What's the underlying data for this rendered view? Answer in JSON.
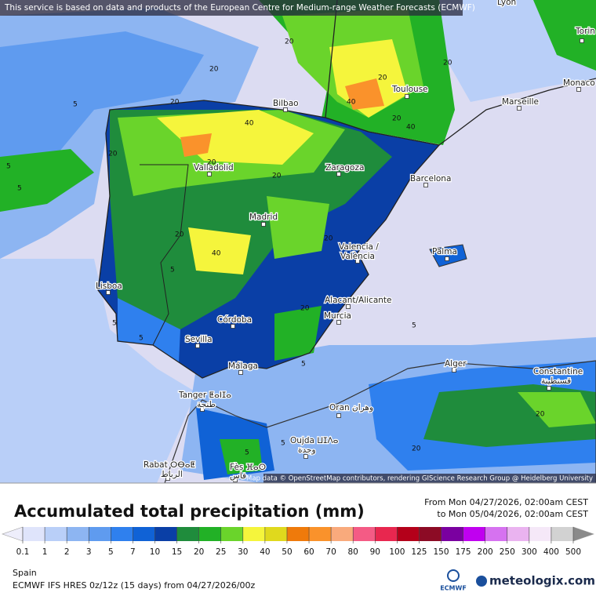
{
  "attribution_top": "This service is based on data and products of the European Centre for Medium-range Weather Forecasts (ECMWF)",
  "map_attribution": "Map data © OpenStreetMap contributors, rendering GIScience Research Group @ Heidelberg University",
  "cities": [
    "Lyon",
    "Torin",
    "Monaco",
    "Toulouse",
    "Marseille",
    "Bilbao",
    "Valladolid",
    "Zaragoza",
    "Barcelona",
    "Madrid",
    "Valencia /",
    "València",
    "Palma",
    "Lisboa",
    "Alacant/Alicante",
    "Murcia",
    "Córdoba",
    "Sevilla",
    "Málaga",
    "Alger",
    "Constantine",
    "قسنطينة",
    "Tanger ⵟⴰⵏⵊⴰ",
    "طنجة",
    "Oran وهران",
    "Oujda ⵡⵊⴷⴰ",
    "وجدة",
    "Rabat ⵔⴱⴰⵟ",
    "الرباط",
    "Fès ⴼⴰⵙ",
    "فاس"
  ],
  "contour_labels": [
    20,
    20,
    5,
    5,
    20,
    40,
    20,
    40,
    20,
    20,
    20,
    40,
    20,
    20,
    40,
    20,
    20,
    5,
    5,
    5,
    20,
    5,
    5,
    20,
    5,
    20,
    5,
    5
  ],
  "legend": {
    "title": "Accumulated total precipitation (mm)",
    "period_from": "From Mon 04/27/2026, 02:00am CEST",
    "period_to": "to Mon 05/04/2026, 02:00am CEST",
    "ticks": [
      0.1,
      1,
      2,
      3,
      5,
      7,
      10,
      15,
      20,
      25,
      30,
      40,
      50,
      60,
      70,
      80,
      90,
      100,
      125,
      150,
      175,
      200,
      250,
      300,
      400,
      500
    ],
    "colors": [
      "#dfe4fb",
      "#b9cff8",
      "#8db5f2",
      "#5f9bef",
      "#2f80ee",
      "#1062d6",
      "#0a3fa6",
      "#1f8c3c",
      "#22b126",
      "#6ad42b",
      "#f5f53c",
      "#e0d91d",
      "#ef7a0b",
      "#fa922b",
      "#f9aa7c",
      "#f45b85",
      "#e8274f",
      "#b4001a",
      "#8c0b25",
      "#7a00a0",
      "#c000f0",
      "#d672f0",
      "#eab3f0",
      "#f5e8f8",
      "#d2d2d2"
    ],
    "under_color": "#eeeefb",
    "over_color": "#8a8a8a"
  },
  "region": "Spain",
  "model": "ECMWF IFS HRES 0z/12z (15 days) from 04/27/2026/00z",
  "logo_left": "ECMWF",
  "logo_right": "meteologix.com"
}
